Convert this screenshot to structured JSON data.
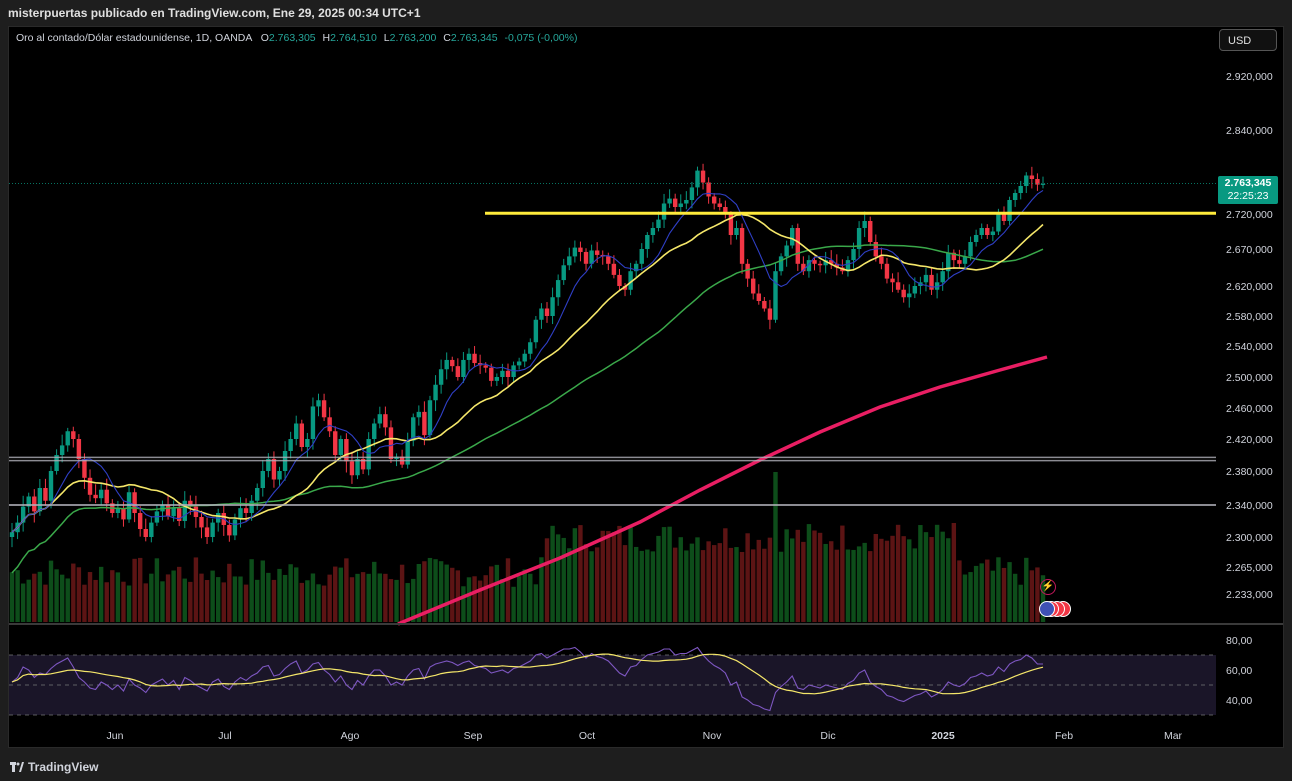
{
  "header": {
    "publisher": "misterpuertas publicado en TradingView.com, Ene 29, 2025 00:34 UTC+1"
  },
  "legend": {
    "symbol": "Oro al contado/Dólar estadounidense, 1D, OANDA",
    "o_label": "O",
    "o_value": "2.763,305",
    "h_label": "H",
    "h_value": "2.764,510",
    "l_label": "L",
    "l_value": "2.763,200",
    "c_label": "C",
    "c_value": "2.763,345",
    "change": "-0,075 (-0,00%)"
  },
  "currency_button": "USD",
  "price_badge": {
    "price": "2.763,345",
    "countdown": "22:25:23"
  },
  "footer": {
    "brand": "TradingView"
  },
  "colors": {
    "up": "#089981",
    "down": "#f23645",
    "vol_up": "#0d4d1a",
    "vol_down": "#5c1414",
    "ma_fast": "#2f3fc6",
    "ma_mid": "#f5e76a",
    "ma_slow": "#3aa84a",
    "ma_long": "#e91e63",
    "resistance": "#ffeb3b",
    "rsi": "#7e57c2",
    "rsi_ma": "#f5e76a"
  },
  "chart_data": {
    "type": "candlestick",
    "x_labels": [
      "Jun",
      "Jul",
      "Ago",
      "Sep",
      "Oct",
      "Nov",
      "Dic",
      "2025",
      "Feb",
      "Mar"
    ],
    "price_ticks": [
      "2.920,000",
      "2.840,000",
      "2.720,000",
      "2.670,000",
      "2.620,000",
      "2.580,000",
      "2.540,000",
      "2.500,000",
      "2.460,000",
      "2.420,000",
      "2.380,000",
      "2.340,000",
      "2.300,000",
      "2.265,000",
      "2.233,000"
    ],
    "price_tick_values": [
      2920,
      2840,
      2720,
      2670,
      2620,
      2580,
      2540,
      2500,
      2460,
      2420,
      2380,
      2340,
      2300,
      2265,
      2233
    ],
    "rsi_ticks": [
      "80,00",
      "60,00",
      "40,00"
    ],
    "rsi_tick_values": [
      80,
      60,
      40
    ],
    "resistance_level": 2721,
    "support_levels": [
      2397,
      2393,
      2340
    ],
    "last_price": 2763.345,
    "closes": [
      2306,
      2318,
      2338,
      2350,
      2332,
      2360,
      2345,
      2380,
      2400,
      2412,
      2430,
      2420,
      2395,
      2372,
      2352,
      2348,
      2358,
      2342,
      2330,
      2336,
      2322,
      2355,
      2330,
      2310,
      2300,
      2318,
      2332,
      2340,
      2326,
      2336,
      2320,
      2345,
      2338,
      2325,
      2312,
      2300,
      2318,
      2330,
      2315,
      2302,
      2322,
      2336,
      2330,
      2345,
      2360,
      2380,
      2395,
      2370,
      2380,
      2405,
      2420,
      2440,
      2410,
      2420,
      2462,
      2470,
      2448,
      2430,
      2400,
      2420,
      2392,
      2375,
      2395,
      2382,
      2420,
      2440,
      2452,
      2435,
      2395,
      2398,
      2388,
      2418,
      2448,
      2455,
      2425,
      2470,
      2490,
      2510,
      2522,
      2514,
      2500,
      2522,
      2530,
      2518,
      2515,
      2512,
      2495,
      2500,
      2508,
      2500,
      2515,
      2520,
      2530,
      2545,
      2575,
      2590,
      2580,
      2605,
      2628,
      2648,
      2660,
      2672,
      2666,
      2650,
      2668,
      2662,
      2660,
      2650,
      2635,
      2620,
      2615,
      2640,
      2650,
      2670,
      2690,
      2700,
      2712,
      2735,
      2742,
      2730,
      2735,
      2740,
      2758,
      2782,
      2765,
      2745,
      2735,
      2730,
      2720,
      2690,
      2700,
      2650,
      2630,
      2610,
      2600,
      2590,
      2575,
      2640,
      2660,
      2675,
      2700,
      2650,
      2640,
      2655,
      2650,
      2648,
      2655,
      2650,
      2645,
      2640,
      2655,
      2670,
      2700,
      2710,
      2680,
      2660,
      2650,
      2630,
      2625,
      2615,
      2605,
      2610,
      2620,
      2625,
      2635,
      2615,
      2625,
      2640,
      2665,
      2655,
      2650,
      2660,
      2680,
      2690,
      2700,
      2690,
      2695,
      2720,
      2710,
      2740,
      2750,
      2760,
      2775,
      2770,
      2762,
      2763
    ],
    "rsi": [
      52,
      55,
      62,
      60,
      55,
      58,
      57,
      61,
      64,
      66,
      68,
      62,
      55,
      52,
      48,
      47,
      52,
      50,
      47,
      50,
      46,
      54,
      50,
      48,
      45,
      50,
      52,
      54,
      50,
      53,
      47,
      55,
      53,
      50,
      48,
      46,
      52,
      54,
      49,
      47,
      52,
      55,
      53,
      56,
      58,
      62,
      63,
      56,
      57,
      61,
      64,
      66,
      58,
      60,
      64,
      65,
      60,
      57,
      52,
      56,
      50,
      47,
      53,
      50,
      56,
      60,
      60,
      56,
      50,
      52,
      50,
      56,
      60,
      61,
      54,
      62,
      64,
      65,
      66,
      65,
      63,
      65,
      66,
      63,
      62,
      61,
      58,
      59,
      60,
      58,
      61,
      62,
      64,
      66,
      70,
      71,
      68,
      70,
      72,
      74,
      74,
      75,
      72,
      68,
      71,
      69,
      68,
      66,
      62,
      58,
      56,
      62,
      63,
      67,
      70,
      71,
      72,
      74,
      74,
      70,
      71,
      71,
      73,
      75,
      70,
      66,
      63,
      61,
      58,
      50,
      52,
      42,
      40,
      37,
      36,
      34,
      33,
      45,
      49,
      52,
      56,
      48,
      47,
      50,
      49,
      48,
      50,
      49,
      48,
      47,
      51,
      53,
      58,
      60,
      52,
      49,
      47,
      43,
      42,
      40,
      39,
      41,
      43,
      44,
      46,
      42,
      44,
      47,
      52,
      50,
      49,
      51,
      55,
      56,
      58,
      56,
      57,
      62,
      59,
      64,
      66,
      67,
      70,
      68,
      64,
      64
    ]
  }
}
